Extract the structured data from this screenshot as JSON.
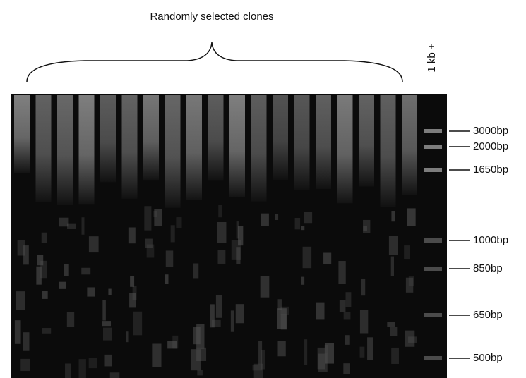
{
  "header": {
    "title": "Randomly selected clones"
  },
  "ladder_label": "1 kb +",
  "markers": [
    "3000bp",
    "2000bp",
    "1650bp",
    "1000bp",
    "850bp",
    "650bp",
    "500bp"
  ]
}
